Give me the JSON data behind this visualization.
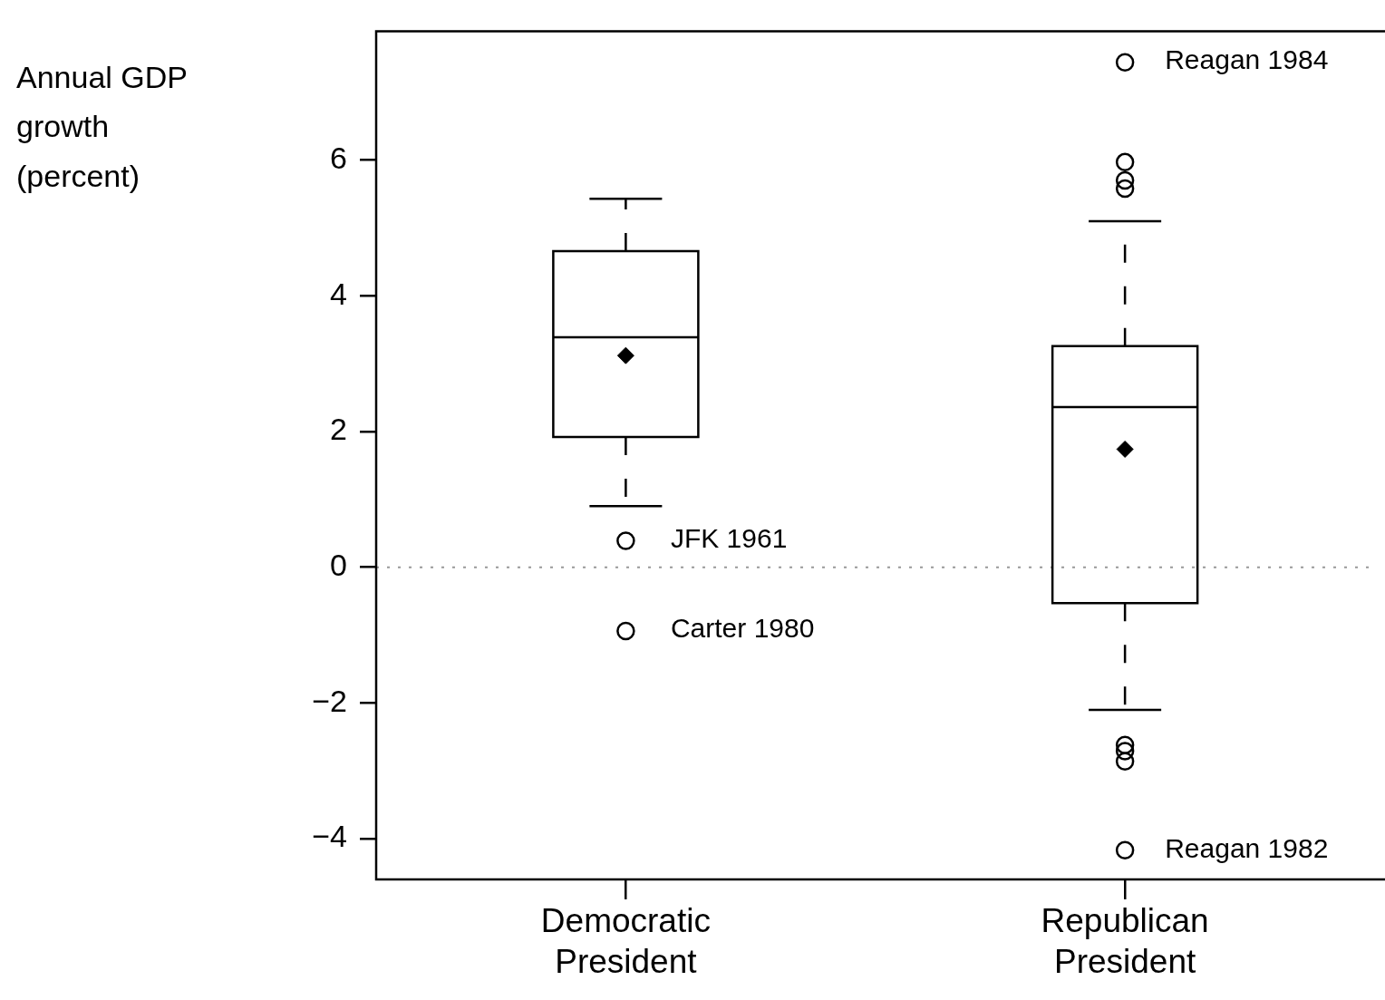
{
  "chart_data": {
    "type": "box",
    "ylabel": "Annual GDP growth (percent)",
    "categories": [
      "Democratic President",
      "Republican President"
    ],
    "boxes": [
      {
        "low": 0.9,
        "q1": 1.92,
        "median": 3.39,
        "q3": 4.66,
        "high": 5.43,
        "mean": 3.12,
        "outliers": [
          0.39,
          -0.94
        ]
      },
      {
        "low": -2.1,
        "q1": -0.53,
        "median": 2.36,
        "q3": 3.26,
        "high": 5.1,
        "mean": 1.74,
        "outliers": [
          7.44,
          5.97,
          5.7,
          5.58,
          -2.62,
          -2.71,
          -2.86,
          -4.17
        ]
      }
    ],
    "ylim": [
      -4.6,
      7.9
    ],
    "yticks": [
      {
        "value": -4,
        "label": "−4"
      },
      {
        "value": -2,
        "label": "−2"
      },
      0,
      2,
      4,
      6
    ],
    "ref_lines": [
      {
        "axis": "y",
        "value": 0,
        "color": "#999999",
        "line_style": "dotted"
      }
    ],
    "annotations": [
      "JFK 1961",
      "Carter 1980",
      "Reagan 1984",
      "Reagan 1982"
    ]
  }
}
